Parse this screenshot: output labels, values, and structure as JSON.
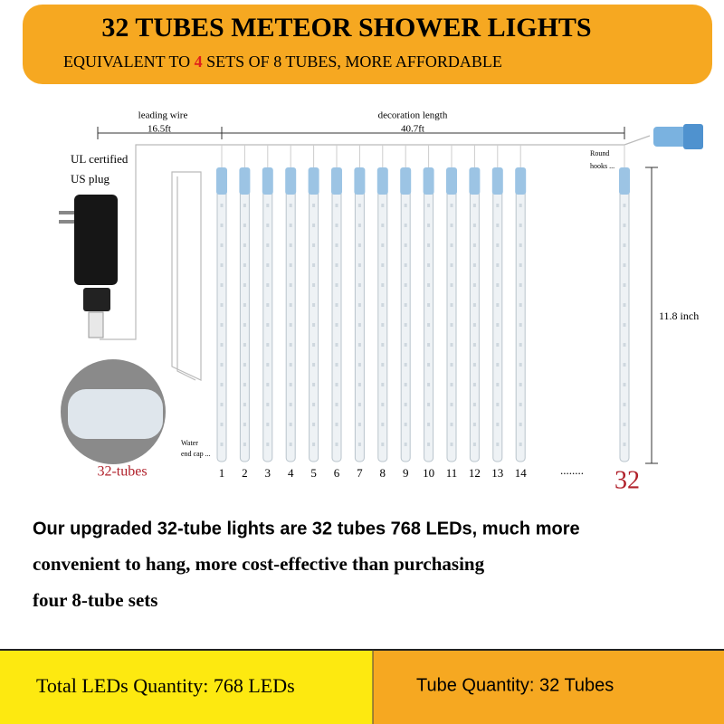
{
  "header": {
    "title": "32 TUBES METEOR SHOWER LIGHTS",
    "subtitle_before": "EQUIVALENT TO ",
    "subtitle_highlight": "4",
    "subtitle_after": " SETS OF 8 TUBES, MORE AFFORDABLE"
  },
  "diagram": {
    "leading_wire_label": "leading wire",
    "leading_wire_length": "16.5ft",
    "decoration_label": "decoration length",
    "decoration_length": "40.7ft",
    "tube_height": "11.8 inch",
    "plug_label_1": "UL certified",
    "plug_label_2": "US plug",
    "hooks_label_1": "Round",
    "hooks_label_2": "hooks ...",
    "cap_label_1": "Water",
    "cap_label_2": "end cap ...",
    "bundle_label": "32-tubes",
    "tube_numbers": [
      "1",
      "2",
      "3",
      "4",
      "5",
      "6",
      "7",
      "8",
      "9",
      "10",
      "11",
      "12",
      "13",
      "14"
    ],
    "ellipsis": "........",
    "last_tube": "32"
  },
  "description": {
    "lines": [
      "Our upgraded 32-tube lights are 32 tubes 768 LEDs, much more",
      "convenient to hang, more cost-effective than purchasing",
      "four 8-tube sets"
    ]
  },
  "footer": {
    "left": "Total LEDs Quantity: 768 LEDs",
    "right": "Tube Quantity: 32 Tubes"
  }
}
